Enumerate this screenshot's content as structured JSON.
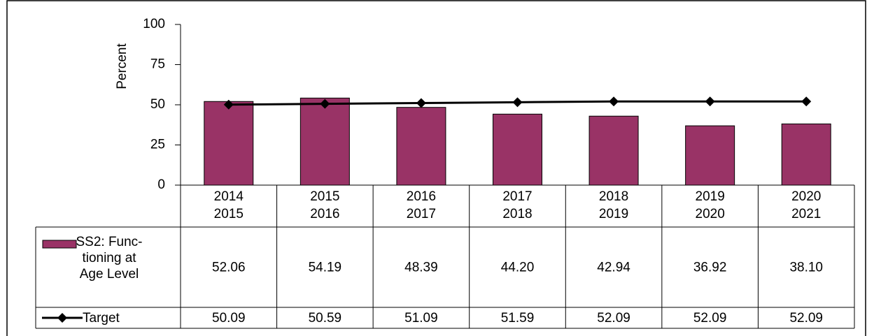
{
  "chart_data": {
    "type": "bar",
    "y_axis_label": "Percent",
    "categories": [
      [
        "2014",
        "2015"
      ],
      [
        "2015",
        "2016"
      ],
      [
        "2016",
        "2017"
      ],
      [
        "2017",
        "2018"
      ],
      [
        "2018",
        "2019"
      ],
      [
        "2019",
        "2020"
      ],
      [
        "2020",
        "2021"
      ]
    ],
    "ylim": [
      0,
      100
    ],
    "yticks": [
      0,
      25,
      50,
      75,
      100
    ],
    "series": [
      {
        "name": "SS2: Func-tioning at Age Level",
        "type": "bar",
        "color": "#993366",
        "values": [
          52.06,
          54.19,
          48.39,
          44.2,
          42.94,
          36.92,
          38.1
        ],
        "value_labels": [
          "52.06",
          "54.19",
          "48.39",
          "44.20",
          "42.94",
          "36.92",
          "38.10"
        ]
      },
      {
        "name": "Target",
        "type": "line",
        "color": "#000000",
        "values": [
          50.09,
          50.59,
          51.09,
          51.59,
          52.09,
          52.09,
          52.09
        ],
        "value_labels": [
          "50.09",
          "50.59",
          "51.09",
          "51.59",
          "52.09",
          "52.09",
          "52.09"
        ]
      }
    ]
  }
}
